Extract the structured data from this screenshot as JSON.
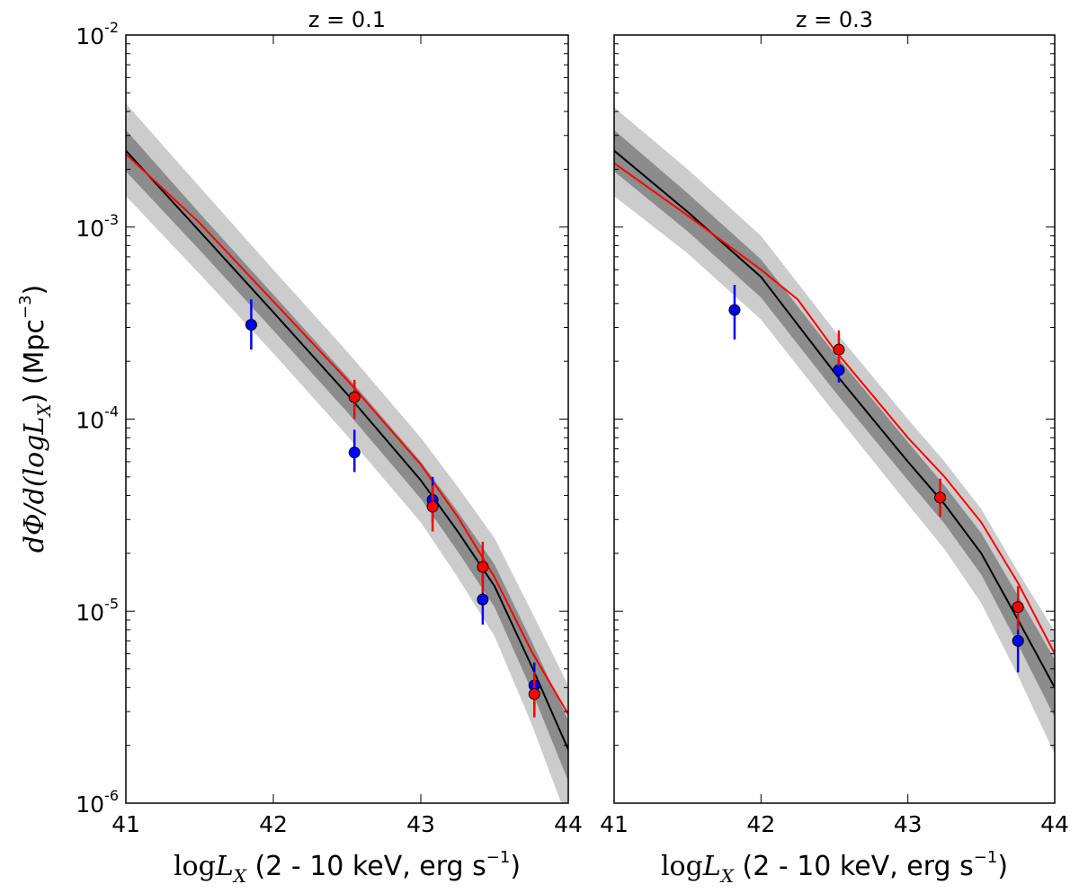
{
  "chart_data": [
    {
      "type": "line",
      "title": "z = 0.1",
      "xlabel": {
        "prefix": "log",
        "var": "L",
        "sub": "X",
        "text": " (2 - 10 keV, erg s",
        "sup": "−1",
        "close": ")"
      },
      "ylabel": {
        "text": "dΦ/d(logL",
        "sub": "X",
        "close": ") (Mpc",
        "sup": "−3",
        "end": ")"
      },
      "xlim": [
        41,
        44
      ],
      "ylim": [
        1e-06,
        0.01
      ],
      "yscale": "log",
      "x_ticks": [
        "41",
        "42",
        "43",
        "44"
      ],
      "y_ticks": [
        {
          "base": "10",
          "exp": "-6",
          "value": 1e-06
        },
        {
          "base": "10",
          "exp": "-5",
          "value": 1e-05
        },
        {
          "base": "10",
          "exp": "-4",
          "value": 0.0001
        },
        {
          "base": "10",
          "exp": "-3",
          "value": 0.001
        },
        {
          "base": "10",
          "exp": "-2",
          "value": 0.01
        }
      ],
      "model_line": {
        "name": "model median",
        "color": "#000000",
        "x": [
          41.0,
          41.5,
          42.0,
          42.5,
          43.0,
          43.25,
          43.5,
          43.75,
          44.0
        ],
        "y": [
          0.0025,
          0.00095,
          0.00036,
          0.000135,
          4.8e-05,
          2.6e-05,
          1.35e-05,
          5.2e-06,
          1.9e-06
        ]
      },
      "band_inner": {
        "color": "#8c8c8c",
        "x": [
          41.0,
          41.5,
          42.0,
          42.5,
          43.0,
          43.25,
          43.5,
          43.75,
          44.0
        ],
        "lower": [
          0.00195,
          0.00076,
          0.00029,
          0.000109,
          3.85e-05,
          2.05e-05,
          1.05e-05,
          3.9e-06,
          1.3e-06
        ],
        "upper": [
          0.0032,
          0.00118,
          0.000445,
          0.000167,
          6e-05,
          3.3e-05,
          1.75e-05,
          7e-06,
          2.7e-06
        ]
      },
      "band_outer": {
        "color": "#cccccc",
        "x": [
          41.0,
          41.5,
          42.0,
          42.5,
          43.0,
          43.25,
          43.5,
          43.75,
          44.0
        ],
        "lower": [
          0.00145,
          0.00057,
          0.00022,
          8.2e-05,
          2.9e-05,
          1.5e-05,
          7.4e-06,
          2.6e-06,
          8e-07
        ],
        "upper": [
          0.0044,
          0.00162,
          0.0006,
          0.000225,
          8e-05,
          4.45e-05,
          2.4e-05,
          1e-05,
          4.1e-06
        ]
      },
      "red_line": {
        "name": "red model",
        "color": "#ff0000",
        "x": [
          41.0,
          41.5,
          42.0,
          42.5,
          43.0,
          43.25,
          43.5,
          43.75,
          44.0
        ],
        "y": [
          0.0024,
          0.00105,
          0.00041,
          0.00016,
          5.8e-05,
          3.1e-05,
          1.5e-05,
          6.2e-06,
          2.9e-06
        ]
      },
      "points": [
        {
          "series": "blue",
          "color": "#0000ff",
          "x": 41.85,
          "y": 0.00031,
          "ylo": 0.00023,
          "yhi": 0.00042
        },
        {
          "series": "blue",
          "color": "#0000ff",
          "x": 42.55,
          "y": 6.7e-05,
          "ylo": 5.3e-05,
          "yhi": 8.8e-05
        },
        {
          "series": "blue",
          "color": "#0000ff",
          "x": 43.08,
          "y": 3.8e-05,
          "ylo": 2.9e-05,
          "yhi": 5e-05
        },
        {
          "series": "blue",
          "color": "#0000ff",
          "x": 43.42,
          "y": 1.15e-05,
          "ylo": 8.5e-06,
          "yhi": 1.6e-05
        },
        {
          "series": "blue",
          "color": "#0000ff",
          "x": 43.77,
          "y": 4.1e-06,
          "ylo": 3.1e-06,
          "yhi": 5.4e-06
        },
        {
          "series": "red",
          "color": "#ff0000",
          "x": 42.55,
          "y": 0.00013,
          "ylo": 0.0001,
          "yhi": 0.00016
        },
        {
          "series": "red",
          "color": "#ff0000",
          "x": 43.08,
          "y": 3.5e-05,
          "ylo": 2.6e-05,
          "yhi": 4.5e-05
        },
        {
          "series": "red",
          "color": "#ff0000",
          "x": 43.42,
          "y": 1.7e-05,
          "ylo": 1.25e-05,
          "yhi": 2.3e-05
        },
        {
          "series": "red",
          "color": "#ff0000",
          "x": 43.77,
          "y": 3.7e-06,
          "ylo": 2.8e-06,
          "yhi": 4.8e-06
        }
      ]
    },
    {
      "type": "line",
      "title": "z = 0.3",
      "xlabel": {
        "prefix": "log",
        "var": "L",
        "sub": "X",
        "text": " (2 - 10 keV, erg s",
        "sup": "−1",
        "close": ")"
      },
      "xlim": [
        41,
        44
      ],
      "ylim": [
        1e-06,
        0.01
      ],
      "yscale": "log",
      "x_ticks": [
        "41",
        "42",
        "43",
        "44"
      ],
      "model_line": {
        "name": "model median",
        "color": "#000000",
        "x": [
          41.0,
          41.5,
          42.0,
          42.5,
          43.0,
          43.25,
          43.5,
          43.75,
          44.0
        ],
        "y": [
          0.0025,
          0.0012,
          0.00055,
          0.000175,
          6e-05,
          3.6e-05,
          2e-05,
          9e-06,
          4e-06
        ]
      },
      "band_inner": {
        "color": "#8c8c8c",
        "x": [
          41.0,
          41.5,
          42.0,
          42.5,
          43.0,
          43.25,
          43.5,
          43.75,
          44.0
        ],
        "lower": [
          0.00195,
          0.00095,
          0.00043,
          0.00014,
          4.8e-05,
          2.85e-05,
          1.55e-05,
          6.7e-06,
          2.8e-06
        ],
        "upper": [
          0.0032,
          0.0015,
          0.00068,
          0.00022,
          7.6e-05,
          4.5e-05,
          2.55e-05,
          1.2e-05,
          5.6e-06
        ]
      },
      "band_outer": {
        "color": "#cccccc",
        "x": [
          41.0,
          41.5,
          42.0,
          42.5,
          43.0,
          43.25,
          43.5,
          43.75,
          44.0
        ],
        "lower": [
          0.00145,
          0.00073,
          0.00033,
          0.000108,
          3.6e-05,
          2.1e-05,
          1.1e-05,
          4.6e-06,
          1.8e-06
        ],
        "upper": [
          0.0042,
          0.002,
          0.0009,
          0.00029,
          0.0001,
          6e-05,
          3.4e-05,
          1.6e-05,
          7.8e-06
        ]
      },
      "red_line": {
        "name": "red model",
        "color": "#ff0000",
        "x": [
          41.0,
          41.5,
          42.0,
          42.25,
          42.5,
          43.0,
          43.25,
          43.5,
          43.75,
          44.0
        ],
        "y": [
          0.00215,
          0.00115,
          0.0006,
          0.00042,
          0.00023,
          8e-05,
          5e-05,
          2.9e-05,
          1.4e-05,
          6e-06
        ]
      },
      "points": [
        {
          "series": "blue",
          "color": "#0000ff",
          "x": 41.82,
          "y": 0.00037,
          "ylo": 0.00026,
          "yhi": 0.0005
        },
        {
          "series": "blue",
          "color": "#0000ff",
          "x": 42.53,
          "y": 0.00018,
          "ylo": 0.000155,
          "yhi": 0.00021
        },
        {
          "series": "blue",
          "color": "#0000ff",
          "x": 43.75,
          "y": 7e-06,
          "ylo": 4.8e-06,
          "yhi": 9.5e-06
        },
        {
          "series": "red",
          "color": "#ff0000",
          "x": 42.53,
          "y": 0.00023,
          "ylo": 0.00019,
          "yhi": 0.00029
        },
        {
          "series": "red",
          "color": "#ff0000",
          "x": 43.22,
          "y": 3.9e-05,
          "ylo": 3.1e-05,
          "yhi": 4.9e-05
        },
        {
          "series": "red",
          "color": "#ff0000",
          "x": 43.75,
          "y": 1.05e-05,
          "ylo": 8e-06,
          "yhi": 1.35e-05
        }
      ]
    }
  ]
}
